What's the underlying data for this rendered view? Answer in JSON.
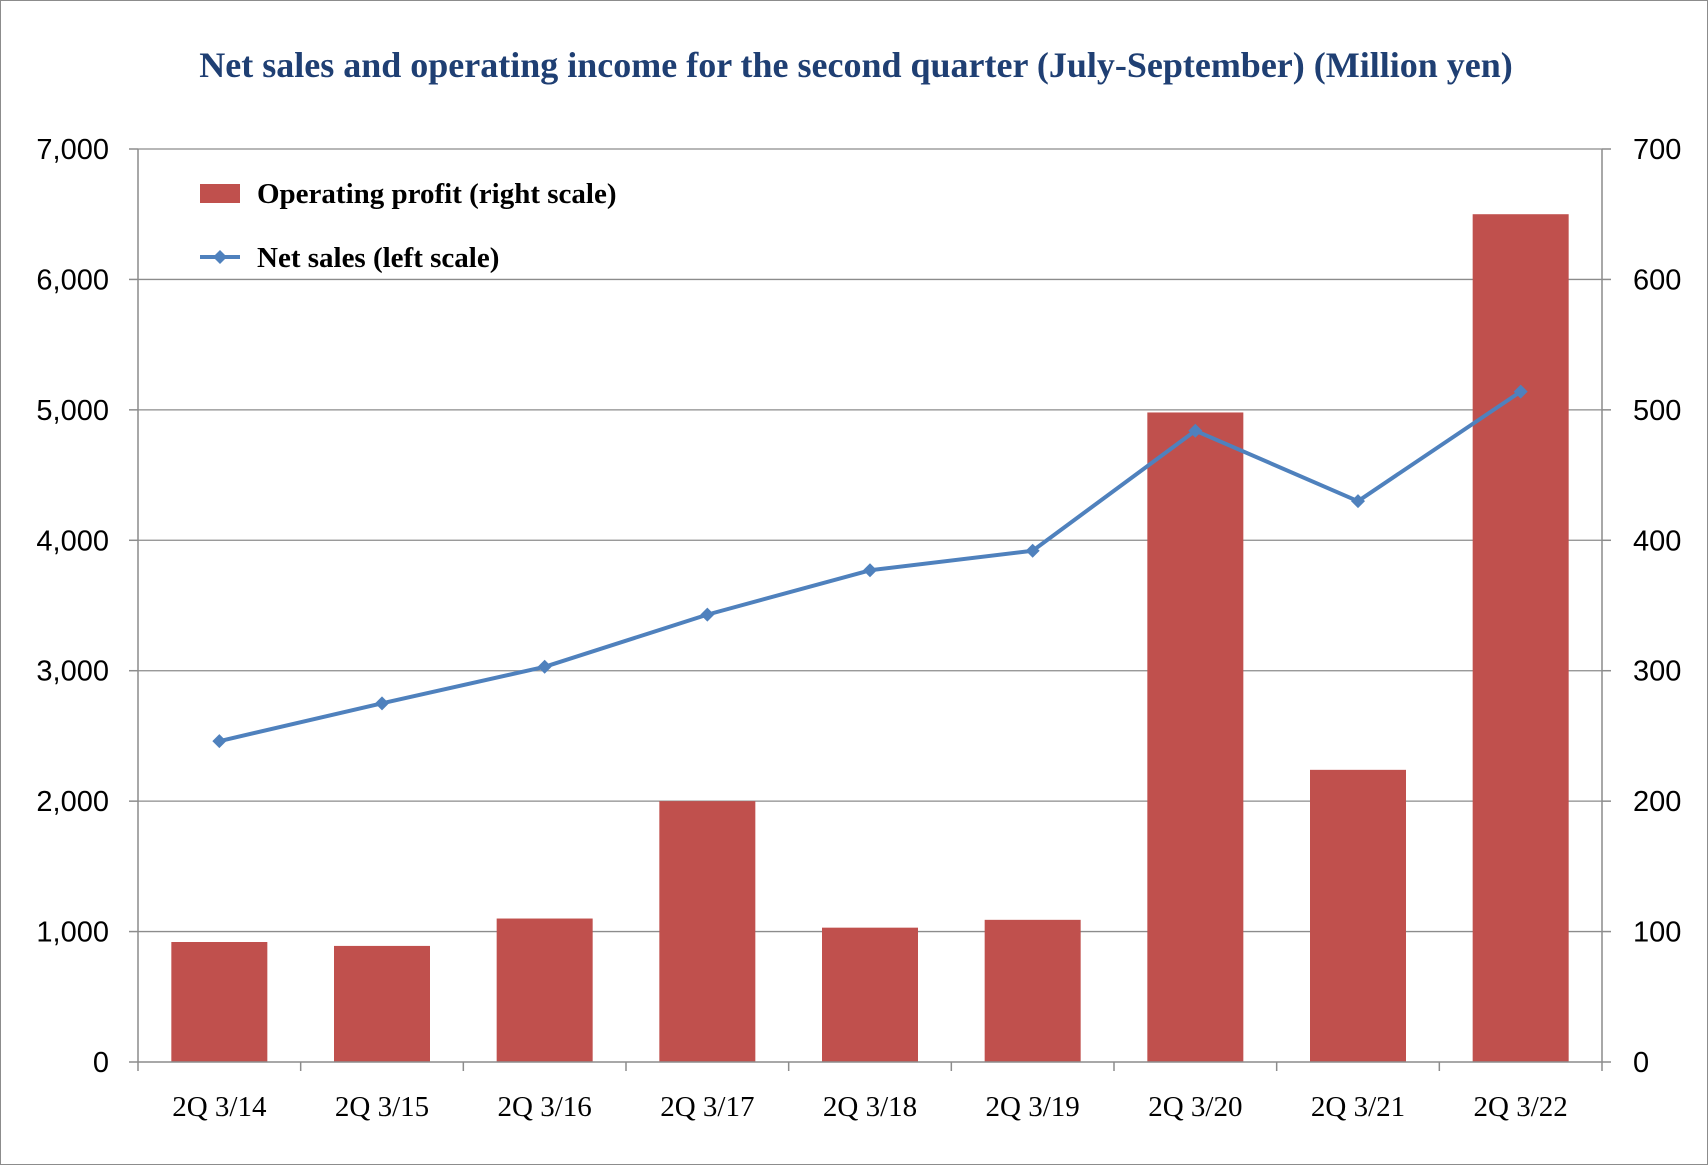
{
  "chart_data": {
    "type": "bar",
    "title": "Net sales and operating income for the second quarter (July-September) (Million yen)",
    "categories": [
      "2Q 3/14",
      "2Q 3/15",
      "2Q 3/16",
      "2Q 3/17",
      "2Q 3/18",
      "2Q 3/19",
      "2Q 3/20",
      "2Q 3/21",
      "2Q 3/22"
    ],
    "series": [
      {
        "name": "Operating profit (right scale)",
        "type": "bar",
        "axis": "right",
        "color": "#c0504d",
        "values": [
          92,
          89,
          110,
          200,
          103,
          109,
          498,
          224,
          650
        ]
      },
      {
        "name": "Net sales (left scale)",
        "type": "line",
        "axis": "left",
        "color": "#4f81bd",
        "marker": "diamond",
        "values": [
          2460,
          2750,
          3030,
          3430,
          3770,
          3920,
          4840,
          4300,
          5140
        ]
      }
    ],
    "y_left": {
      "ylim": [
        0,
        7000
      ],
      "ticks": [
        "0",
        "1,000",
        "2,000",
        "3,000",
        "4,000",
        "5,000",
        "6,000",
        "7,000"
      ]
    },
    "y_right": {
      "ylim": [
        0,
        700
      ],
      "ticks": [
        "0",
        "100",
        "200",
        "300",
        "400",
        "500",
        "600",
        "700"
      ]
    },
    "grid": true,
    "legend_position": "top-left"
  }
}
